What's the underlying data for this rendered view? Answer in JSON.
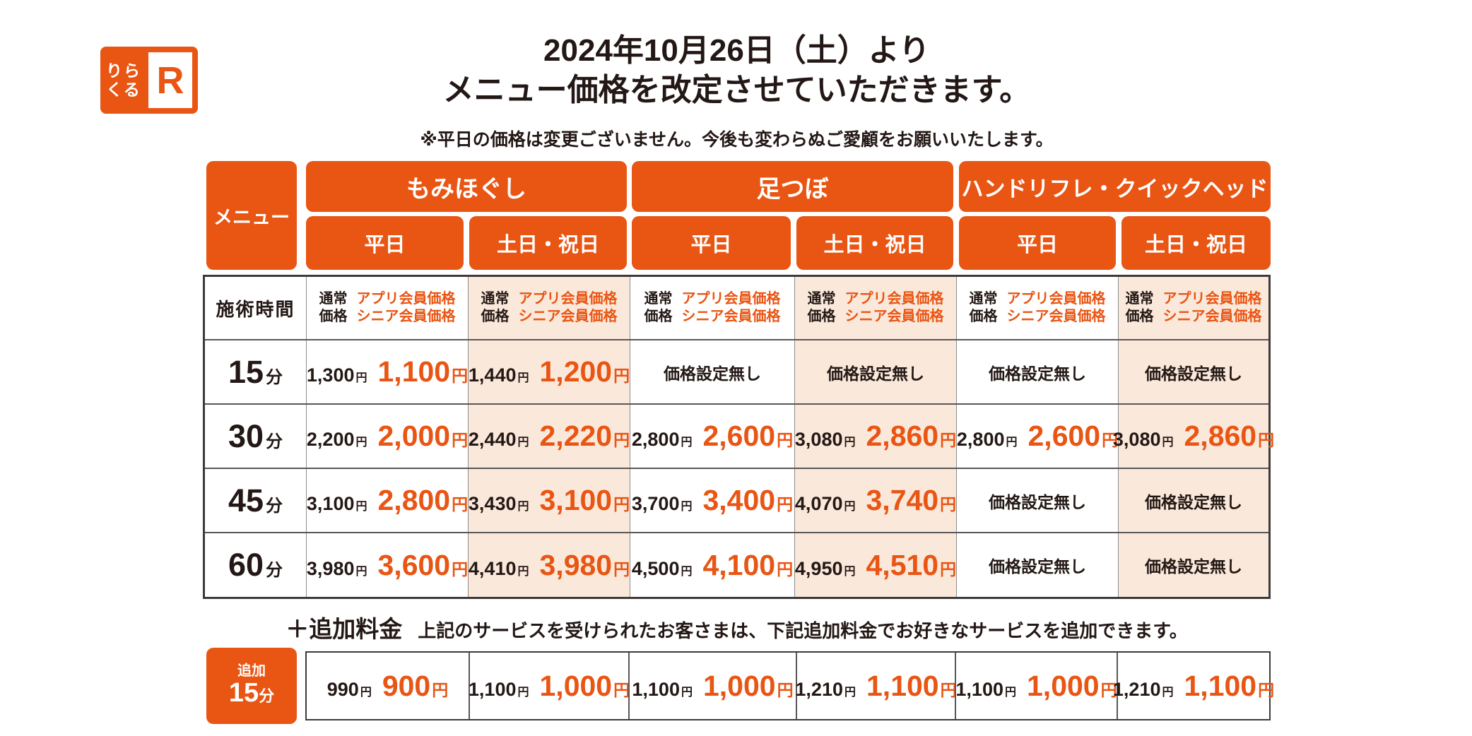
{
  "logo": {
    "top": "りら",
    "bottom": "くる",
    "r": "R"
  },
  "title": {
    "line1": "2024年10月26日（土）より",
    "line2": "メニュー価格を改定させていただきます。"
  },
  "subtitle": "※平日の価格は変更ございません。今後も変わらぬご愛顧をお願いいたします。",
  "table": {
    "menu_label": "メニュー",
    "categories": [
      {
        "name": "もみほぐし"
      },
      {
        "name": "足つぼ"
      },
      {
        "name": "ハンドリフレ・クイックヘッド"
      }
    ],
    "day_labels": [
      "平日",
      "土日・祝日",
      "平日",
      "土日・祝日",
      "平日",
      "土日・祝日"
    ],
    "time_header": "施術時間",
    "price_header": {
      "normal_l1": "通常",
      "normal_l2": "価格",
      "member_l1": "アプリ会員価格",
      "member_l2": "シニア会員価格"
    },
    "no_price": "価格設定無し",
    "yen": "円",
    "rows": [
      {
        "time": "15",
        "unit": "分",
        "cells": [
          {
            "normal": "1,300",
            "member": "1,100"
          },
          {
            "normal": "1,440",
            "member": "1,200"
          },
          null,
          null,
          null,
          null
        ]
      },
      {
        "time": "30",
        "unit": "分",
        "cells": [
          {
            "normal": "2,200",
            "member": "2,000"
          },
          {
            "normal": "2,440",
            "member": "2,220"
          },
          {
            "normal": "2,800",
            "member": "2,600"
          },
          {
            "normal": "3,080",
            "member": "2,860"
          },
          {
            "normal": "2,800",
            "member": "2,600"
          },
          {
            "normal": "3,080",
            "member": "2,860"
          }
        ]
      },
      {
        "time": "45",
        "unit": "分",
        "cells": [
          {
            "normal": "3,100",
            "member": "2,800"
          },
          {
            "normal": "3,430",
            "member": "3,100"
          },
          {
            "normal": "3,700",
            "member": "3,400"
          },
          {
            "normal": "4,070",
            "member": "3,740"
          },
          null,
          null
        ]
      },
      {
        "time": "60",
        "unit": "分",
        "cells": [
          {
            "normal": "3,980",
            "member": "3,600"
          },
          {
            "normal": "4,410",
            "member": "3,980"
          },
          {
            "normal": "4,500",
            "member": "4,100"
          },
          {
            "normal": "4,950",
            "member": "4,510"
          },
          null,
          null
        ]
      }
    ]
  },
  "addon": {
    "plus_label": "＋追加料金",
    "description": "上記のサービスを受けられたお客さまは、下記追加料金でお好きなサービスを追加できます。",
    "time_small": "追加",
    "time_num": "15",
    "time_unit": "分",
    "cells": [
      {
        "normal": "990",
        "member": "900"
      },
      {
        "normal": "1,100",
        "member": "1,000"
      },
      {
        "normal": "1,100",
        "member": "1,000"
      },
      {
        "normal": "1,210",
        "member": "1,100"
      },
      {
        "normal": "1,100",
        "member": "1,000"
      },
      {
        "normal": "1,210",
        "member": "1,100"
      }
    ]
  },
  "colors": {
    "orange": "#e95513",
    "peach": "#fae8da",
    "text_dark": "#231815"
  }
}
